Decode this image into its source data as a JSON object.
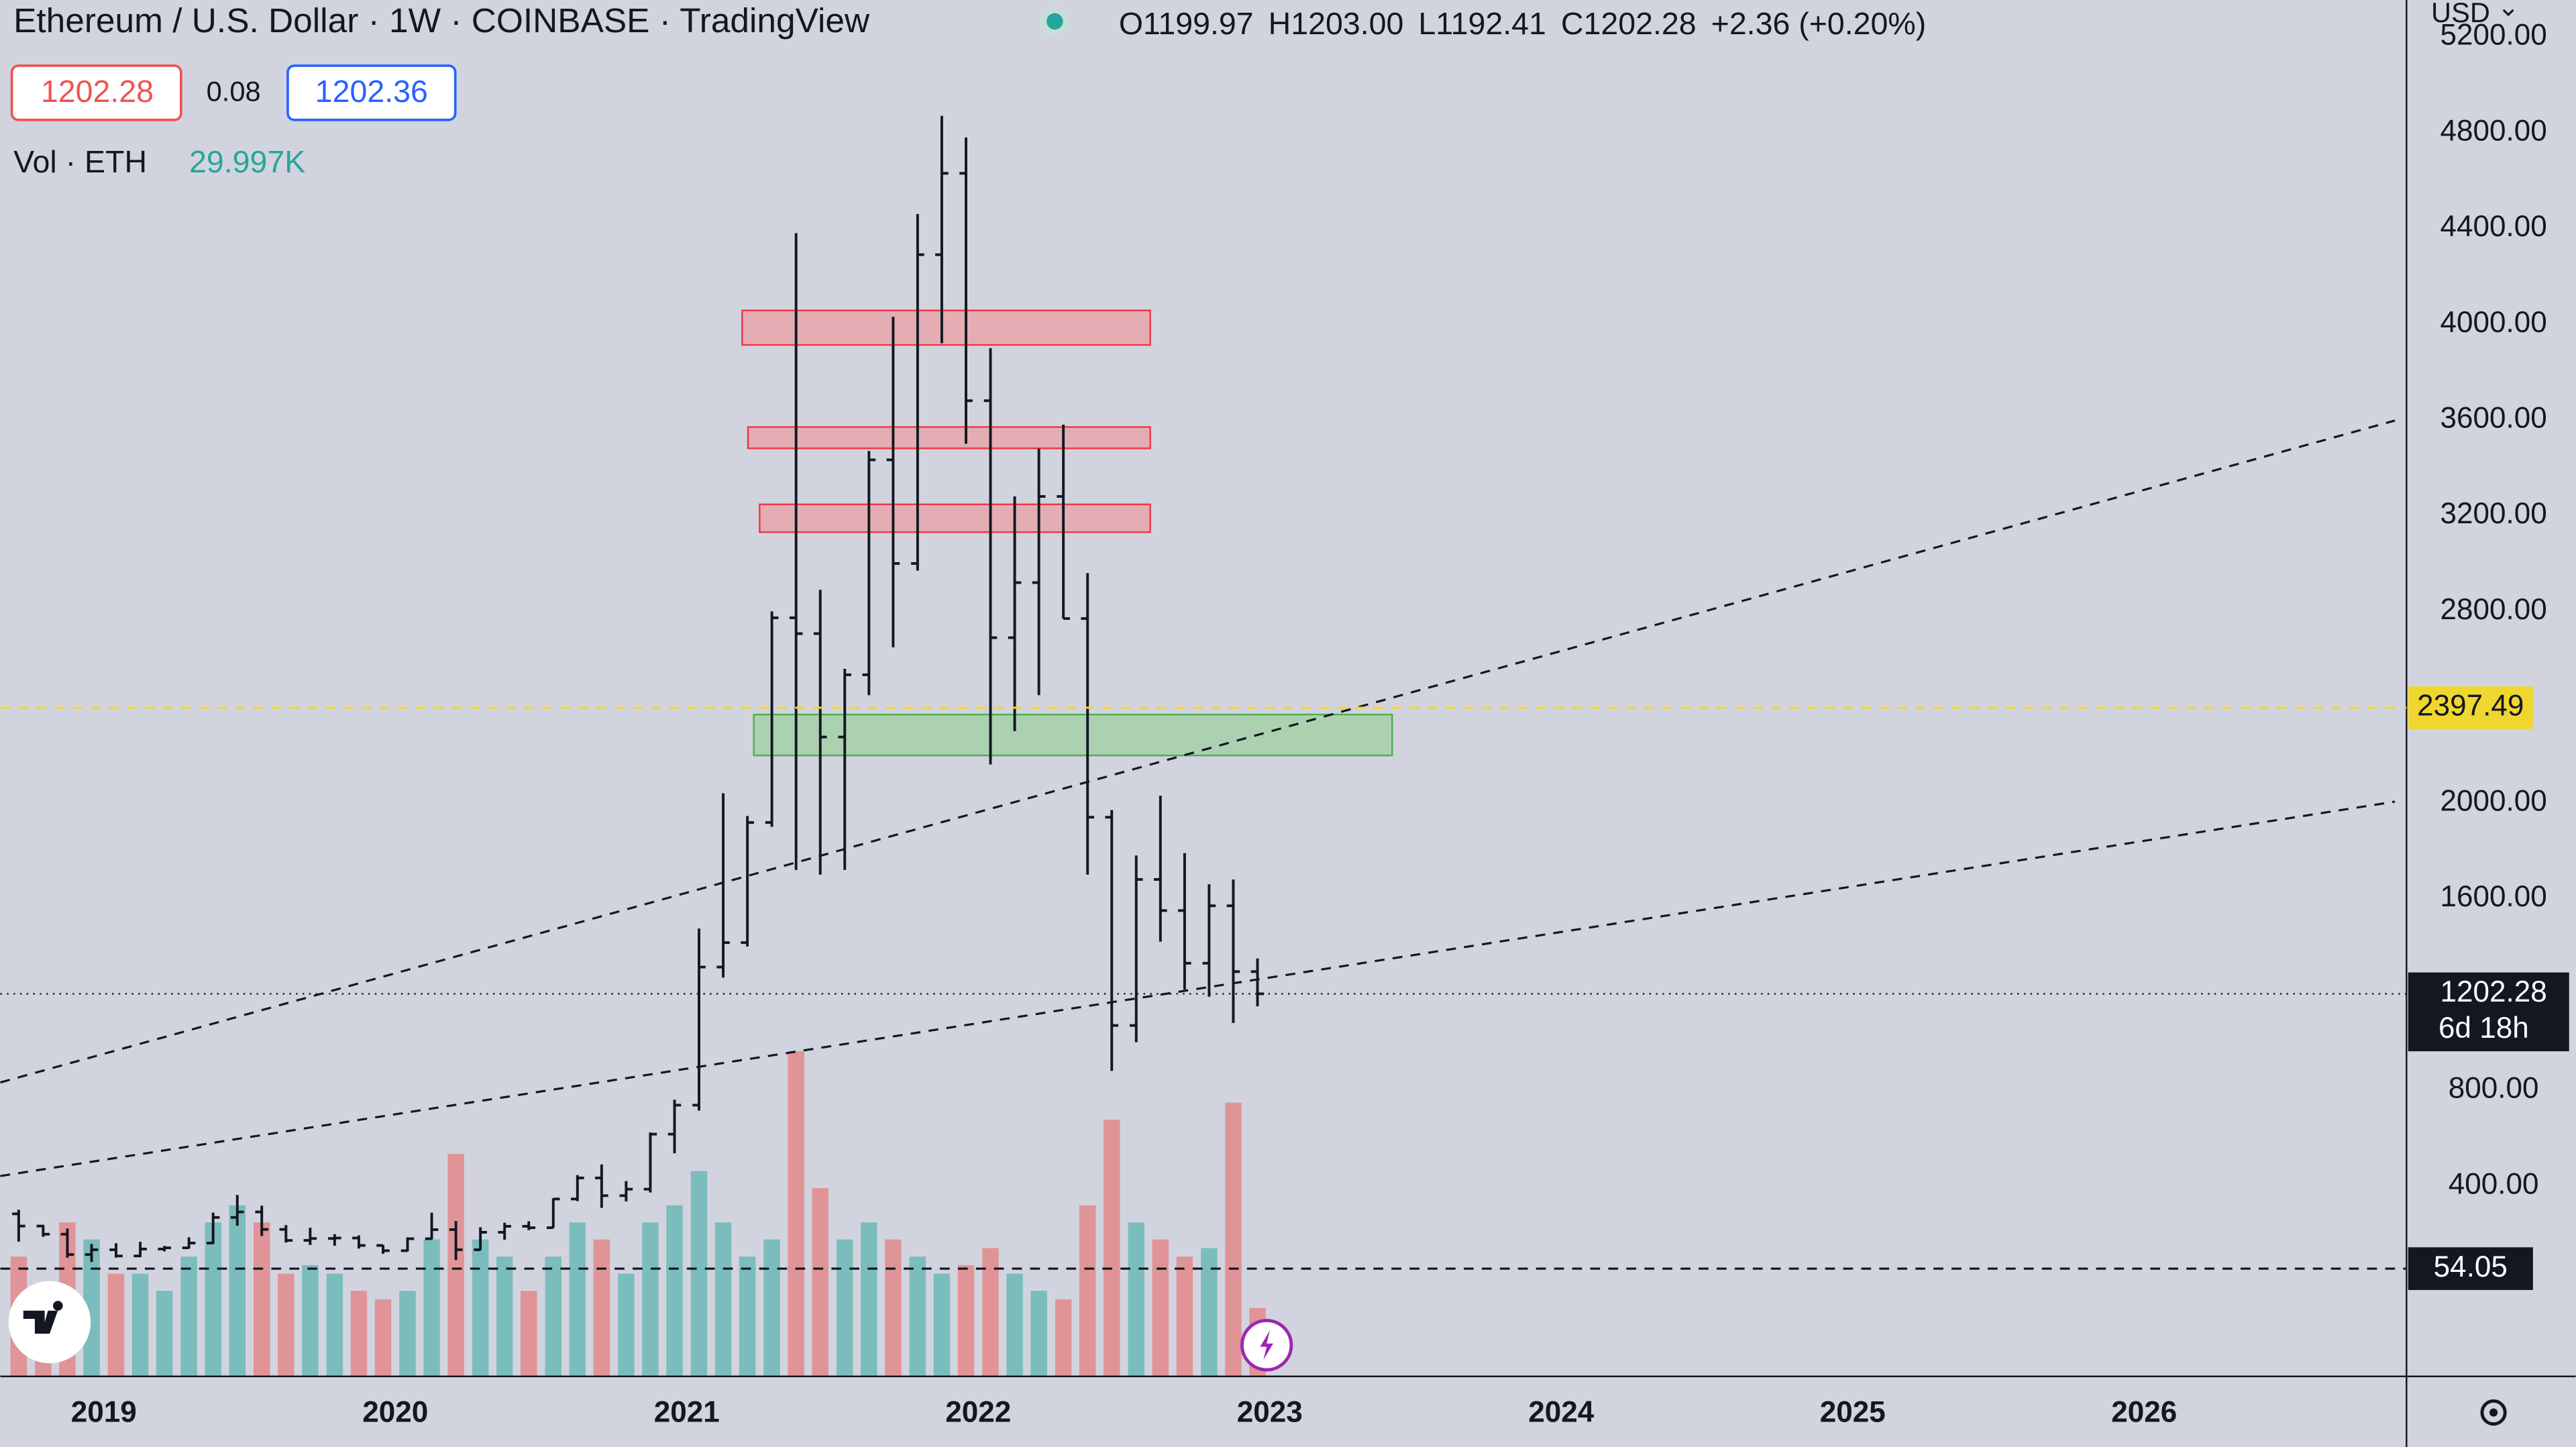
{
  "header": {
    "title": "Ethereum / U.S. Dollar · 1W · COINBASE · TradingView",
    "ohlc": [
      {
        "key": "O",
        "value": "1199.97"
      },
      {
        "key": "H",
        "value": "1203.00"
      },
      {
        "key": "L",
        "value": "1192.41"
      },
      {
        "key": "C",
        "value": "1202.28"
      }
    ],
    "change": "+2.36 (+0.20%)",
    "bid": "1202.28",
    "spread": "0.08",
    "ask": "1202.36",
    "volume_label": "Vol · ETH",
    "volume_value": "29.997K",
    "currency": "USD"
  },
  "chart_data": {
    "type": "ohlc",
    "x": [
      2018.708,
      2018.792,
      2018.875,
      2018.958,
      2019.042,
      2019.125,
      2019.208,
      2019.292,
      2019.375,
      2019.458,
      2019.542,
      2019.625,
      2019.708,
      2019.792,
      2019.875,
      2019.958,
      2020.042,
      2020.125,
      2020.208,
      2020.292,
      2020.375,
      2020.458,
      2020.542,
      2020.625,
      2020.708,
      2020.792,
      2020.875,
      2020.958,
      2021.042,
      2021.125,
      2021.208,
      2021.292,
      2021.375,
      2021.458,
      2021.542,
      2021.625,
      2021.708,
      2021.792,
      2021.875,
      2021.958,
      2022.042,
      2022.125,
      2022.208,
      2022.292,
      2022.375,
      2022.458,
      2022.542,
      2022.625,
      2022.708,
      2022.792,
      2022.875,
      2022.958
    ],
    "open": [
      283,
      232,
      198,
      113,
      133,
      107,
      136,
      141,
      161,
      268,
      291,
      218,
      172,
      180,
      182,
      151,
      129,
      179,
      217,
      133,
      206,
      231,
      225,
      345,
      433,
      359,
      386,
      616,
      737,
      1314,
      1416,
      1918,
      2773,
      2707,
      2275,
      2535,
      3433,
      3000,
      4290,
      4630,
      3680,
      2690,
      2920,
      3280,
      2770,
      1940,
      1070,
      1680,
      1550,
      1330,
      1570,
      1295
    ],
    "high": [
      300,
      237,
      222,
      157,
      160,
      166,
      149,
      185,
      288,
      362,
      317,
      236,
      225,
      198,
      193,
      153,
      185,
      288,
      253,
      227,
      246,
      252,
      348,
      445,
      489,
      420,
      623,
      760,
      1475,
      2040,
      1945,
      2800,
      4380,
      2890,
      2560,
      3470,
      4030,
      4460,
      4870,
      4780,
      3900,
      3280,
      3480,
      3580,
      2960,
      1970,
      1780,
      2030,
      1790,
      1660,
      1680,
      1350
    ],
    "low": [
      167,
      187,
      100,
      82,
      100,
      102,
      126,
      138,
      157,
      233,
      190,
      163,
      153,
      150,
      138,
      116,
      126,
      176,
      90,
      131,
      175,
      215,
      224,
      336,
      308,
      335,
      372,
      536,
      714,
      1270,
      1400,
      1900,
      1720,
      1700,
      1720,
      2450,
      2650,
      2970,
      3920,
      3500,
      2160,
      2300,
      2450,
      2770,
      1700,
      880,
      1000,
      1420,
      1220,
      1190,
      1080,
      1150
    ],
    "close": [
      232,
      198,
      113,
      133,
      107,
      136,
      141,
      161,
      268,
      291,
      218,
      172,
      180,
      182,
      151,
      129,
      179,
      217,
      133,
      206,
      231,
      225,
      345,
      433,
      359,
      386,
      616,
      737,
      1314,
      1416,
      1918,
      2773,
      2707,
      2275,
      2535,
      3433,
      3000,
      4290,
      4630,
      3680,
      2690,
      2920,
      3280,
      2770,
      1940,
      1070,
      1680,
      1550,
      1330,
      1570,
      1295,
      1202.28
    ],
    "volume": [
      700,
      500,
      900,
      800,
      600,
      600,
      500,
      700,
      900,
      1000,
      900,
      600,
      650,
      600,
      500,
      450,
      500,
      800,
      1300,
      800,
      700,
      500,
      700,
      900,
      800,
      600,
      900,
      1000,
      1200,
      900,
      700,
      800,
      1900,
      1100,
      800,
      900,
      800,
      700,
      600,
      650,
      750,
      600,
      500,
      450,
      1000,
      1500,
      900,
      800,
      700,
      750,
      1600,
      400
    ],
    "vlim": [
      0,
      2400
    ],
    "color": "#131722",
    "up_color": "#26a69a",
    "down_color": "#ef5350",
    "xlim": [
      2018.645,
      2026.9
    ],
    "xticks": [
      2019,
      2020,
      2021,
      2022,
      2023,
      2024,
      2025,
      2026
    ],
    "ylim": [
      -396,
      5354
    ],
    "yticks": [
      {
        "value": 400,
        "label": "400.00"
      },
      {
        "value": 800,
        "label": "800.00"
      },
      {
        "value": 1600,
        "label": "1600.00"
      },
      {
        "value": 2000,
        "label": "2000.00"
      },
      {
        "value": 2800,
        "label": "2800.00"
      },
      {
        "value": 3200,
        "label": "3200.00"
      },
      {
        "value": 3600,
        "label": "3600.00"
      },
      {
        "value": 4000,
        "label": "4000.00"
      },
      {
        "value": 4400,
        "label": "4400.00"
      },
      {
        "value": 4800,
        "label": "4800.00"
      },
      {
        "value": 5200,
        "label": "5200.00"
      }
    ],
    "grid": false,
    "zones": [
      {
        "x": [
          2021.19,
          2022.59
        ],
        "y": [
          3913,
          4057
        ],
        "color": "#e8a0a4"
      },
      {
        "x": [
          2021.21,
          2022.59
        ],
        "y": [
          3481,
          3570
        ],
        "color": "#e8a0a4"
      },
      {
        "x": [
          2021.25,
          2022.59
        ],
        "y": [
          3131,
          3247
        ],
        "color": "#e8a0a4"
      },
      {
        "x": [
          2021.23,
          2023.42
        ],
        "y": [
          2198,
          2369
        ],
        "color": "#9fd0a2"
      }
    ],
    "trendlines": [
      {
        "x": [
          2018.645,
          2026.86
        ],
        "y": [
          832,
          3597
        ]
      },
      {
        "x": [
          2018.645,
          2026.86
        ],
        "y": [
          441,
          2005
        ]
      }
    ],
    "hlines": [
      {
        "value": 2397.49,
        "color": "#f0d730"
      },
      {
        "value": 54.05,
        "color": "#131722"
      }
    ],
    "last": {
      "value": 1202.28,
      "countdown": "6d 18h"
    }
  }
}
